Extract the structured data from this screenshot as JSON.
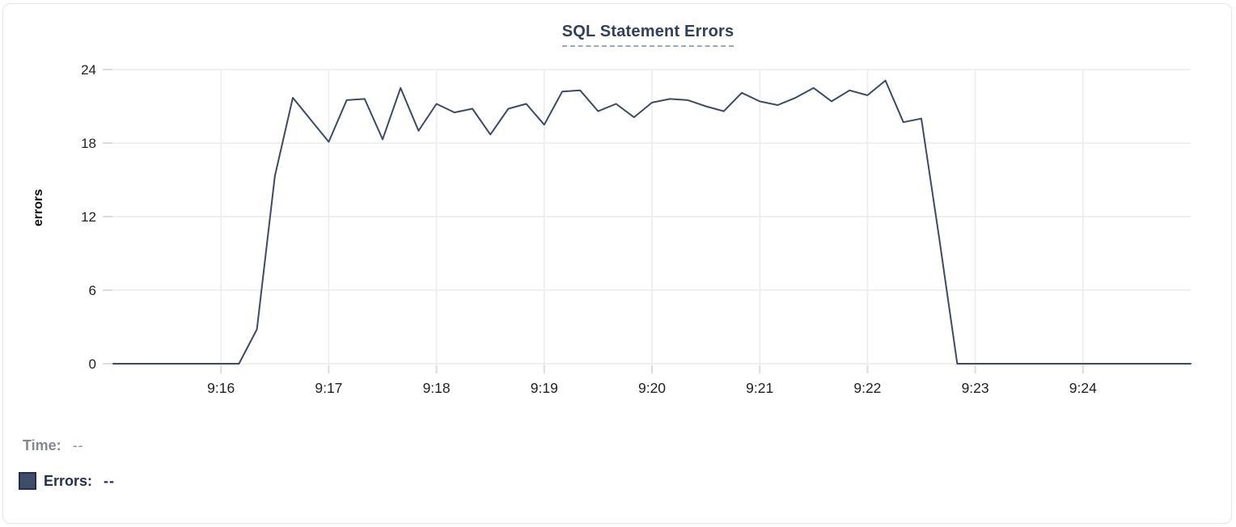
{
  "header": {
    "title": "SQL Statement Errors"
  },
  "legend": {
    "time_label": "Time:",
    "time_value": "--",
    "errors_label": "Errors:",
    "errors_value": "--",
    "swatch_color": "#3e4d68"
  },
  "colors": {
    "line": "#3a4a6b",
    "grid": "#ececec",
    "tick": "#dcdcdc",
    "tick_label": "#1f1f1f",
    "title": "#32405f",
    "title_underline": "#9aa7c2",
    "card_border": "#e5e6ea"
  },
  "chart_data": {
    "type": "line",
    "title": "SQL Statement Errors",
    "xlabel": "",
    "ylabel": "errors",
    "ylim": [
      0,
      24
    ],
    "y_ticks": [
      0,
      6,
      12,
      18,
      24
    ],
    "x_ticks": [
      "9:16",
      "9:17",
      "9:18",
      "9:19",
      "9:20",
      "9:21",
      "9:22",
      "9:23",
      "9:24"
    ],
    "x_domain": [
      "9:15:00",
      "9:25:00"
    ],
    "grid": true,
    "legend_position": "bottom-left",
    "series": [
      {
        "name": "Errors",
        "color": "#3a4a6b",
        "points": [
          [
            "9:15:00",
            0
          ],
          [
            "9:15:10",
            0
          ],
          [
            "9:15:20",
            0
          ],
          [
            "9:15:30",
            0
          ],
          [
            "9:15:40",
            0
          ],
          [
            "9:15:50",
            0
          ],
          [
            "9:16:00",
            0
          ],
          [
            "9:16:10",
            0
          ],
          [
            "9:16:20",
            2.8
          ],
          [
            "9:16:30",
            15.3
          ],
          [
            "9:16:40",
            21.7
          ],
          [
            "9:16:50",
            19.9
          ],
          [
            "9:17:00",
            18.1
          ],
          [
            "9:17:10",
            21.5
          ],
          [
            "9:17:20",
            21.6
          ],
          [
            "9:17:30",
            18.3
          ],
          [
            "9:17:40",
            22.5
          ],
          [
            "9:17:50",
            19.0
          ],
          [
            "9:18:00",
            21.2
          ],
          [
            "9:18:10",
            20.5
          ],
          [
            "9:18:20",
            20.8
          ],
          [
            "9:18:30",
            18.7
          ],
          [
            "9:18:40",
            20.8
          ],
          [
            "9:18:50",
            21.2
          ],
          [
            "9:19:00",
            19.5
          ],
          [
            "9:19:10",
            22.2
          ],
          [
            "9:19:20",
            22.3
          ],
          [
            "9:19:30",
            20.6
          ],
          [
            "9:19:40",
            21.2
          ],
          [
            "9:19:50",
            20.1
          ],
          [
            "9:20:00",
            21.3
          ],
          [
            "9:20:10",
            21.6
          ],
          [
            "9:20:20",
            21.5
          ],
          [
            "9:20:30",
            21.0
          ],
          [
            "9:20:40",
            20.6
          ],
          [
            "9:20:50",
            22.1
          ],
          [
            "9:21:00",
            21.4
          ],
          [
            "9:21:10",
            21.1
          ],
          [
            "9:21:20",
            21.7
          ],
          [
            "9:21:30",
            22.5
          ],
          [
            "9:21:40",
            21.4
          ],
          [
            "9:21:50",
            22.3
          ],
          [
            "9:22:00",
            21.9
          ],
          [
            "9:22:10",
            23.1
          ],
          [
            "9:22:20",
            19.7
          ],
          [
            "9:22:30",
            20.0
          ],
          [
            "9:22:40",
            10.2
          ],
          [
            "9:22:50",
            0
          ],
          [
            "9:23:00",
            0
          ],
          [
            "9:23:10",
            0
          ],
          [
            "9:23:20",
            0
          ],
          [
            "9:23:30",
            0
          ],
          [
            "9:23:40",
            0
          ],
          [
            "9:23:50",
            0
          ],
          [
            "9:24:00",
            0
          ],
          [
            "9:24:10",
            0
          ],
          [
            "9:24:20",
            0
          ],
          [
            "9:24:30",
            0
          ],
          [
            "9:24:40",
            0
          ],
          [
            "9:24:50",
            0
          ],
          [
            "9:25:00",
            0
          ]
        ]
      }
    ]
  }
}
